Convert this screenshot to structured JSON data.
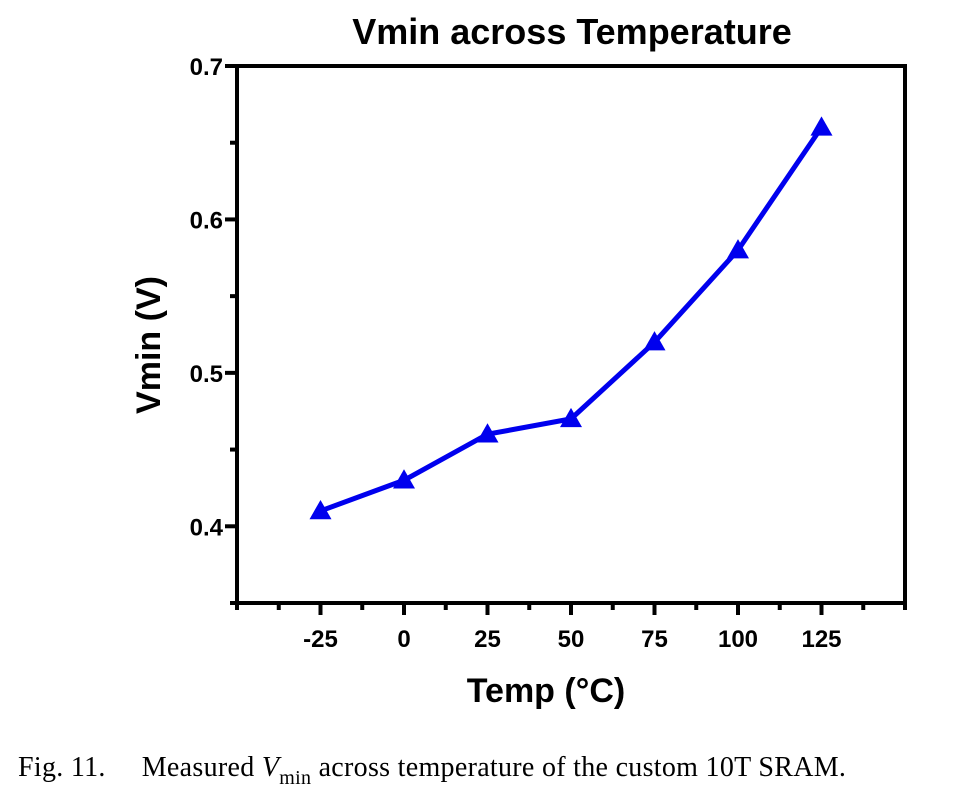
{
  "chart_data": {
    "type": "line",
    "title": "Vmin across Temperature",
    "xlabel": "Temp (°C)",
    "ylabel": "Vmin (V)",
    "x": [
      -25,
      0,
      25,
      50,
      75,
      100,
      125
    ],
    "series": [
      {
        "values": [
          0.41,
          0.43,
          0.46,
          0.47,
          0.52,
          0.58,
          0.66
        ],
        "color": "#0000ee",
        "marker": "triangle"
      }
    ],
    "x_ticks": [
      "-25",
      "0",
      "25",
      "50",
      "75",
      "100",
      "125"
    ],
    "y_ticks": [
      "0.4",
      "0.5",
      "0.6",
      "0.7"
    ],
    "xlim": [
      -50,
      150
    ],
    "ylim": [
      0.35,
      0.7
    ],
    "grid": false
  },
  "caption": {
    "label": "Fig. 11.",
    "text_before": "Measured",
    "symbol": "V",
    "subscript": "min",
    "text_after": "across temperature of the custom 10T SRAM."
  }
}
